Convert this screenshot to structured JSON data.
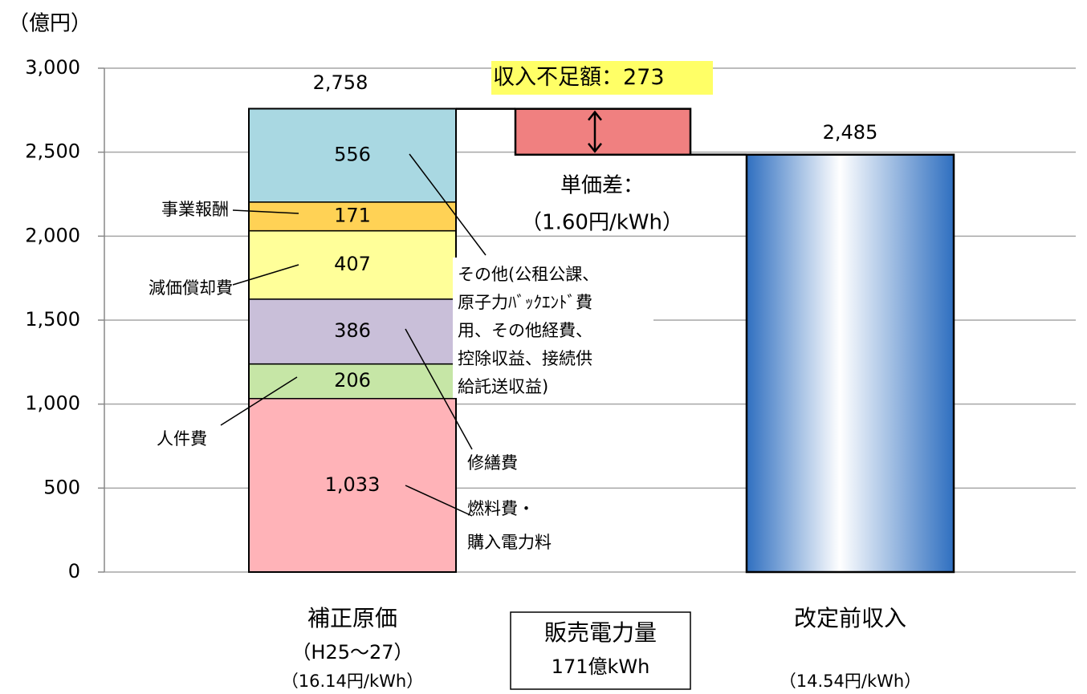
{
  "chart_data": {
    "type": "stacked_bar",
    "unit_label": "（億円）",
    "ylim": [
      0,
      3000
    ],
    "yticks": [
      0,
      500,
      {
        "value": 1000,
        "label": "1,000"
      },
      {
        "value": 1500,
        "label": "1,500"
      },
      {
        "value": 2000,
        "label": "2,000"
      },
      {
        "value": 2500,
        "label": "2,500"
      },
      {
        "value": 3000,
        "label": "3,000"
      }
    ],
    "grid": true,
    "stack": {
      "category": "補正原価",
      "notes": [
        "（H25～27）",
        "（16.14円/kWh）"
      ],
      "total": 2758,
      "total_label": "2,758",
      "segments": [
        {
          "name": [
            "燃料費・",
            "購入電力料"
          ],
          "color": "#ffb3b8",
          "value": 1033,
          "value_label": "1,033"
        },
        {
          "name": [
            "人件費"
          ],
          "color": "#c6e6a6",
          "value": 206
        },
        {
          "name": [
            "修繕費"
          ],
          "color": "#c9bfd9",
          "value": 386
        },
        {
          "name": [
            "減価償却費"
          ],
          "color": "#ffff99",
          "value": 407
        },
        {
          "name": [
            "事業報酬"
          ],
          "color": "#ffd255",
          "value": 171
        },
        {
          "name": [
            "その他(公租公課、",
            "原子力ﾊﾞｯｸｴﾝﾄﾞ費",
            "用、その他経費、",
            "控除収益、接続供",
            "給託送収益)"
          ],
          "color": "#a9d8e2",
          "value": 556
        }
      ]
    },
    "bar": {
      "category": "改定前収入",
      "notes": [
        "（14.54円/kWh）"
      ],
      "value": 2485,
      "value_label": "2,485",
      "color": "#2f6fc0"
    },
    "shortfall": {
      "label": "収入不足額：",
      "value": 273,
      "color": "#f08080"
    },
    "unit_price_diff": [
      "単価差：",
      "（1.60円/kWh）"
    ],
    "sales_volume": [
      "販売電力量",
      "171億kWh"
    ]
  }
}
